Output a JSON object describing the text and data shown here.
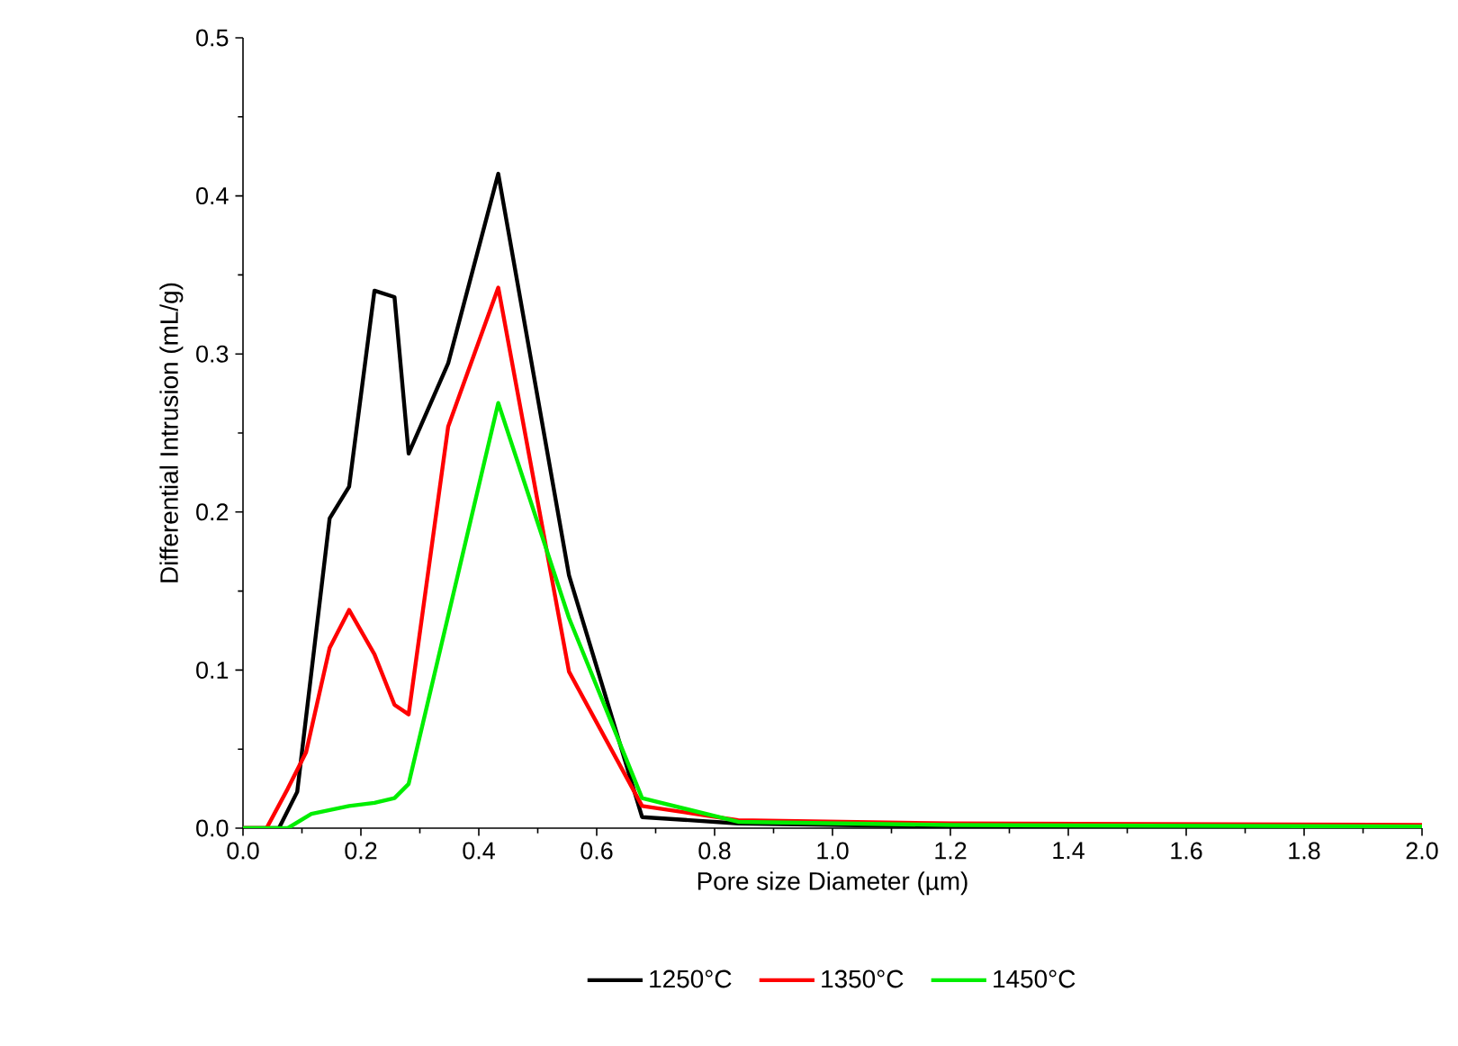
{
  "chart_data": {
    "type": "line",
    "xlabel": "Pore size Diameter (µm)",
    "ylabel": "Differential Intrusion (mL/g)",
    "xlim": [
      0,
      2.0
    ],
    "ylim": [
      0,
      0.5
    ],
    "xticks": [
      {
        "value": 0,
        "label": "0.0"
      },
      0.2,
      0.4,
      0.6,
      0.8,
      {
        "value": 1,
        "label": "1.0"
      },
      1.2,
      1.4,
      1.6,
      1.8,
      {
        "value": 2,
        "label": "2.0"
      }
    ],
    "yticks": [
      {
        "value": 0,
        "label": "0.0"
      },
      0.1,
      0.2,
      0.3,
      0.4,
      0.5
    ],
    "grid": false,
    "legend": "bottom",
    "marker": "none",
    "line_style": "solid",
    "series": [
      {
        "name": "1250°C",
        "color": "#000000",
        "x": [
          0,
          0.061,
          0.092,
          0.147,
          0.18,
          0.223,
          0.257,
          0.281,
          0.348,
          0.433,
          0.553,
          0.677,
          0.84,
          1.2,
          2.0
        ],
        "values": [
          0,
          0,
          0.023,
          0.196,
          0.216,
          0.34,
          0.336,
          0.237,
          0.294,
          0.414,
          0.16,
          0.007,
          0.003,
          0.001,
          0.001
        ]
      },
      {
        "name": "1350°C",
        "color": "#ff0000",
        "x": [
          0,
          0.04,
          0.076,
          0.107,
          0.147,
          0.18,
          0.223,
          0.257,
          0.281,
          0.348,
          0.433,
          0.553,
          0.677,
          0.84,
          1.2,
          2.0
        ],
        "values": [
          0,
          0,
          0.025,
          0.048,
          0.114,
          0.138,
          0.11,
          0.078,
          0.072,
          0.254,
          0.342,
          0.099,
          0.014,
          0.005,
          0.003,
          0.002
        ]
      },
      {
        "name": "1450°C",
        "color": "#00ee00",
        "x": [
          0,
          0.076,
          0.116,
          0.18,
          0.223,
          0.257,
          0.281,
          0.433,
          0.553,
          0.677,
          0.84,
          1.2,
          2.0
        ],
        "values": [
          0,
          0,
          0.009,
          0.014,
          0.016,
          0.019,
          0.028,
          0.269,
          0.133,
          0.019,
          0.004,
          0.002,
          0.001
        ]
      }
    ]
  }
}
